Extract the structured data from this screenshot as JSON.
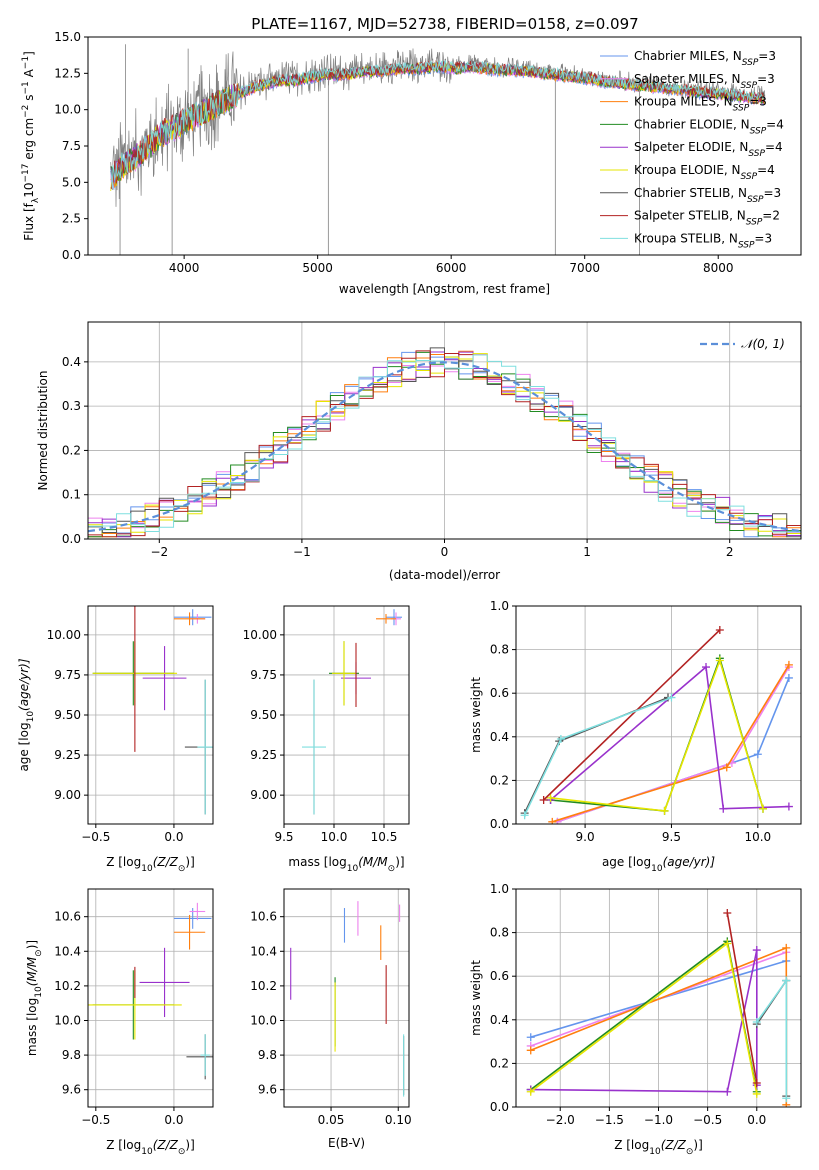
{
  "figure_title": "PLATE=1167, MJD=52738, FIBERID=0158, z=0.097",
  "colors": {
    "chabrier_miles": "#6495ed",
    "salpeter_miles": "#ee82ee",
    "kroupa_miles": "#ff7f0e",
    "chabrier_elodie": "#228b22",
    "salpeter_elodie": "#9932cc",
    "kroupa_elodie": "#e6e600",
    "chabrier_stelib": "#555555",
    "salpeter_stelib": "#b22222",
    "kroupa_stelib": "#7fdfdf",
    "data": "#808080",
    "gaussian": "#5b8fd9",
    "grid": "#b0b0b0"
  },
  "legend_spectrum": [
    {
      "label": "Chabrier MILES, N",
      "sub": "SSP",
      "suffix": "=3",
      "color_key": "chabrier_miles"
    },
    {
      "label": "Salpeter MILES, N",
      "sub": "SSP",
      "suffix": "=3",
      "color_key": "salpeter_miles"
    },
    {
      "label": "Kroupa MILES, N",
      "sub": "SSP",
      "suffix": "=3",
      "color_key": "kroupa_miles"
    },
    {
      "label": "Chabrier ELODIE, N",
      "sub": "SSP",
      "suffix": "=4",
      "color_key": "chabrier_elodie"
    },
    {
      "label": "Salpeter ELODIE, N",
      "sub": "SSP",
      "suffix": "=4",
      "color_key": "salpeter_elodie"
    },
    {
      "label": "Kroupa ELODIE, N",
      "sub": "SSP",
      "suffix": "=4",
      "color_key": "kroupa_elodie"
    },
    {
      "label": "Chabrier STELIB, N",
      "sub": "SSP",
      "suffix": "=3",
      "color_key": "chabrier_stelib"
    },
    {
      "label": "Salpeter STELIB, N",
      "sub": "SSP",
      "suffix": "=2",
      "color_key": "salpeter_stelib"
    },
    {
      "label": "Kroupa STELIB, N",
      "sub": "SSP",
      "suffix": "=3",
      "color_key": "kroupa_stelib"
    }
  ],
  "legend_hist": {
    "label": "𝒩(0, 1)"
  },
  "chart_data": [
    {
      "id": "spectrum",
      "type": "line",
      "xlabel": "wavelength [Angstrom, rest frame]",
      "ylabel_parts": [
        "Flux [f",
        "λ",
        "10",
        "−17",
        " erg cm",
        "−2",
        " s",
        "−1",
        " A",
        "−1",
        "]"
      ],
      "xlim": [
        3280,
        8620
      ],
      "ylim": [
        0,
        15
      ],
      "xticks": [
        4000,
        5000,
        6000,
        7000,
        8000
      ],
      "yticks": [
        0.0,
        2.5,
        5.0,
        7.5,
        10.0,
        12.5,
        15.0
      ],
      "ytick_labels": [
        "0.0",
        "2.5",
        "5.0",
        "7.5",
        "10.0",
        "12.5",
        "15.0"
      ],
      "grid": false,
      "legend_position": "right",
      "continuum": {
        "x": [
          3450,
          3550,
          3650,
          3750,
          3850,
          3950,
          4050,
          4150,
          4250,
          4350,
          4450,
          4550,
          4650,
          4750,
          4850,
          4950,
          5050,
          5150,
          5250,
          5350,
          5450,
          5550,
          5650,
          5750,
          5850,
          5950,
          6050,
          6150,
          6250,
          6350,
          6450,
          6550,
          6650,
          6750,
          6850,
          6950,
          7050,
          7150,
          7250,
          7350,
          7450,
          7550,
          7650,
          7750,
          7850,
          7950,
          8050,
          8150,
          8250,
          8350
        ],
        "y": [
          5.4,
          6.4,
          7.0,
          7.8,
          8.6,
          9.0,
          9.6,
          10.0,
          10.6,
          11.0,
          11.4,
          11.8,
          12.0,
          12.2,
          12.2,
          12.4,
          12.6,
          12.6,
          12.6,
          12.8,
          12.8,
          12.9,
          13.0,
          13.0,
          13.1,
          13.1,
          13.0,
          13.1,
          13.0,
          12.9,
          12.9,
          12.8,
          12.7,
          12.6,
          12.5,
          12.4,
          12.3,
          12.1,
          12.0,
          11.9,
          11.8,
          11.7,
          11.6,
          11.5,
          11.4,
          11.3,
          11.2,
          11.1,
          11.0,
          10.9
        ]
      },
      "data_spikes": [
        {
          "x": 3520,
          "y": 0.0
        },
        {
          "x": 3910,
          "y": 0.0
        },
        {
          "x": 5080,
          "y": 0.0
        },
        {
          "x": 6780,
          "y": 0.0
        },
        {
          "x": 7410,
          "y": 0.0
        },
        {
          "x": 3560,
          "y": 14.5
        },
        {
          "x": 4030,
          "y": 14.2
        }
      ]
    },
    {
      "id": "residual_hist",
      "type": "line",
      "xlabel": "(data-model)/error",
      "ylabel": "Normed distribution",
      "xlim": [
        -2.5,
        2.5
      ],
      "ylim": [
        0,
        0.49
      ],
      "xticks": [
        -2,
        -1,
        0,
        1,
        2
      ],
      "xtick_labels": [
        "−2",
        "−1",
        "0",
        "1",
        "2"
      ],
      "yticks": [
        0.0,
        0.1,
        0.2,
        0.3,
        0.4
      ],
      "ytick_labels": [
        "0.0",
        "0.1",
        "0.2",
        "0.3",
        "0.4"
      ],
      "grid": true,
      "legend_position": "top-right",
      "bin_width": 0.1,
      "gaussian": {
        "mean": 0,
        "sigma": 1
      }
    },
    {
      "id": "age_vs_Z",
      "type": "scatter",
      "xlabel_parts": [
        "Z [log",
        "10",
        "(Z/Z",
        "⊙",
        ")]"
      ],
      "ylabel_parts": [
        "age  [log",
        "10",
        "(age/yr)]"
      ],
      "xlim": [
        -0.55,
        0.25
      ],
      "ylim": [
        8.82,
        10.18
      ],
      "xticks": [
        -0.5,
        0.0
      ],
      "xtick_labels": [
        "−0.5",
        "0.0"
      ],
      "yticks": [
        9.0,
        9.25,
        9.5,
        9.75,
        10.0
      ],
      "ytick_labels": [
        "9.00",
        "9.25",
        "9.50",
        "9.75",
        "10.00"
      ],
      "grid": true,
      "points": [
        {
          "x": 0.12,
          "y": 10.11,
          "xerr": 0.12,
          "yerr": 0.05,
          "color_key": "chabrier_miles"
        },
        {
          "x": 0.15,
          "y": 10.1,
          "xerr": 0.05,
          "yerr": 0.03,
          "color_key": "salpeter_miles"
        },
        {
          "x": 0.1,
          "y": 10.1,
          "xerr": 0.1,
          "yerr": 0.04,
          "color_key": "kroupa_miles"
        },
        {
          "x": -0.26,
          "y": 9.76,
          "xerr": 0.26,
          "yerr": 0.2,
          "color_key": "chabrier_elodie"
        },
        {
          "x": -0.06,
          "y": 9.73,
          "xerr": 0.14,
          "yerr": 0.2,
          "color_key": "salpeter_elodie"
        },
        {
          "x": -0.25,
          "y": 9.76,
          "xerr": 0.27,
          "yerr": 0.2,
          "color_key": "kroupa_elodie"
        },
        {
          "x": 0.2,
          "y": 9.3,
          "xerr": 0.13,
          "yerr": 0.42,
          "color_key": "chabrier_stelib"
        },
        {
          "x": -0.25,
          "y": 9.75,
          "xerr": 0.0,
          "yerr": 0.48,
          "color_key": "salpeter_stelib"
        },
        {
          "x": 0.2,
          "y": 9.3,
          "xerr": 0.05,
          "yerr": 0.42,
          "color_key": "kroupa_stelib"
        }
      ]
    },
    {
      "id": "age_vs_mass",
      "type": "scatter",
      "xlabel_parts": [
        "mass [log",
        "10",
        "(M/M",
        "⊙",
        ")]"
      ],
      "xlim": [
        9.5,
        10.75
      ],
      "ylim": [
        8.82,
        10.18
      ],
      "xticks": [
        9.5,
        10.0,
        10.5
      ],
      "xtick_labels": [
        "9.5",
        "10.0",
        "10.5"
      ],
      "yticks": [
        9.0,
        9.25,
        9.5,
        9.75,
        10.0
      ],
      "ytick_labels": [
        "9.00",
        "9.25",
        "9.50",
        "9.75",
        "10.00"
      ],
      "grid": true,
      "points": [
        {
          "x": 10.6,
          "y": 10.11,
          "xerr": 0.08,
          "yerr": 0.05,
          "color_key": "chabrier_miles"
        },
        {
          "x": 10.62,
          "y": 10.1,
          "xerr": 0.05,
          "yerr": 0.04,
          "color_key": "salpeter_miles"
        },
        {
          "x": 10.52,
          "y": 10.1,
          "xerr": 0.1,
          "yerr": 0.03,
          "color_key": "kroupa_miles"
        },
        {
          "x": 10.1,
          "y": 9.76,
          "xerr": 0.15,
          "yerr": 0.2,
          "color_key": "chabrier_elodie"
        },
        {
          "x": 10.22,
          "y": 9.73,
          "xerr": 0.15,
          "yerr": 0.1,
          "color_key": "salpeter_elodie"
        },
        {
          "x": 10.1,
          "y": 9.76,
          "xerr": 0.12,
          "yerr": 0.2,
          "color_key": "kroupa_elodie"
        },
        {
          "x": 9.8,
          "y": 9.3,
          "xerr": 0.0,
          "yerr": 0.42,
          "color_key": "chabrier_stelib"
        },
        {
          "x": 10.22,
          "y": 9.75,
          "xerr": 0.0,
          "yerr": 0.2,
          "color_key": "salpeter_stelib"
        },
        {
          "x": 9.8,
          "y": 9.3,
          "xerr": 0.12,
          "yerr": 0.42,
          "color_key": "kroupa_stelib"
        }
      ]
    },
    {
      "id": "mass_weight_vs_age",
      "type": "line",
      "xlabel_parts": [
        "age  [log",
        "10",
        "(age/yr)]"
      ],
      "ylabel": "mass weight",
      "xlim": [
        8.6,
        10.25
      ],
      "ylim": [
        0,
        1.0
      ],
      "xticks": [
        9.0,
        9.5,
        10.0
      ],
      "xtick_labels": [
        "9.0",
        "9.5",
        "10.0"
      ],
      "yticks": [
        0.0,
        0.2,
        0.4,
        0.6,
        0.8,
        1.0
      ],
      "ytick_labels": [
        "0.0",
        "0.2",
        "0.4",
        "0.6",
        "0.8",
        "1.0"
      ],
      "grid": true,
      "series": [
        {
          "color_key": "chabrier_miles",
          "x": [
            8.84,
            10.0,
            10.18
          ],
          "y": [
            0.01,
            0.32,
            0.67
          ]
        },
        {
          "color_key": "salpeter_miles",
          "x": [
            8.84,
            9.85,
            10.18
          ],
          "y": [
            0.01,
            0.28,
            0.72
          ]
        },
        {
          "color_key": "kroupa_miles",
          "x": [
            8.81,
            9.82,
            10.18
          ],
          "y": [
            0.01,
            0.26,
            0.73
          ]
        },
        {
          "color_key": "chabrier_elodie",
          "x": [
            8.8,
            9.46,
            9.78,
            10.03
          ],
          "y": [
            0.11,
            0.06,
            0.76,
            0.07
          ]
        },
        {
          "color_key": "salpeter_elodie",
          "x": [
            8.8,
            9.7,
            9.8,
            10.18
          ],
          "y": [
            0.11,
            0.72,
            0.07,
            0.08
          ]
        },
        {
          "color_key": "kroupa_elodie",
          "x": [
            8.8,
            9.46,
            9.78,
            10.03
          ],
          "y": [
            0.12,
            0.06,
            0.75,
            0.07
          ]
        },
        {
          "color_key": "chabrier_stelib",
          "x": [
            8.65,
            8.85,
            9.48
          ],
          "y": [
            0.05,
            0.38,
            0.58
          ]
        },
        {
          "color_key": "salpeter_stelib",
          "x": [
            8.76,
            9.78
          ],
          "y": [
            0.11,
            0.89
          ]
        },
        {
          "color_key": "kroupa_stelib",
          "x": [
            8.65,
            8.86,
            9.5
          ],
          "y": [
            0.04,
            0.39,
            0.58
          ]
        }
      ]
    },
    {
      "id": "mass_vs_Z",
      "type": "scatter",
      "xlabel_parts": [
        "Z [log",
        "10",
        "(Z/Z",
        "⊙",
        ")]"
      ],
      "ylabel_parts": [
        "mass [log",
        "10",
        "(M/M",
        "⊙",
        ")]"
      ],
      "xlim": [
        -0.55,
        0.25
      ],
      "ylim": [
        9.5,
        10.76
      ],
      "xticks": [
        -0.5,
        0.0
      ],
      "xtick_labels": [
        "−0.5",
        "0.0"
      ],
      "yticks": [
        9.6,
        9.8,
        10.0,
        10.2,
        10.4,
        10.6
      ],
      "ytick_labels": [
        "9.6",
        "9.8",
        "10.0",
        "10.2",
        "10.4",
        "10.6"
      ],
      "grid": true,
      "points": [
        {
          "x": 0.12,
          "y": 10.59,
          "xerr": 0.12,
          "yerr": 0.06,
          "color_key": "chabrier_miles"
        },
        {
          "x": 0.15,
          "y": 10.63,
          "xerr": 0.05,
          "yerr": 0.05,
          "color_key": "salpeter_miles"
        },
        {
          "x": 0.1,
          "y": 10.51,
          "xerr": 0.1,
          "yerr": 0.1,
          "color_key": "kroupa_miles"
        },
        {
          "x": -0.26,
          "y": 10.09,
          "xerr": 0.26,
          "yerr": 0.2,
          "color_key": "chabrier_elodie"
        },
        {
          "x": -0.06,
          "y": 10.22,
          "xerr": 0.16,
          "yerr": 0.2,
          "color_key": "salpeter_elodie"
        },
        {
          "x": -0.25,
          "y": 10.09,
          "xerr": 0.3,
          "yerr": 0.2,
          "color_key": "kroupa_elodie"
        },
        {
          "x": 0.2,
          "y": 9.79,
          "xerr": 0.12,
          "yerr": 0.13,
          "color_key": "chabrier_stelib"
        },
        {
          "x": -0.25,
          "y": 10.22,
          "xerr": 0.0,
          "yerr": 0.09,
          "color_key": "salpeter_stelib"
        },
        {
          "x": 0.2,
          "y": 9.8,
          "xerr": 0.03,
          "yerr": 0.12,
          "color_key": "kroupa_stelib"
        }
      ]
    },
    {
      "id": "mass_vs_ebv",
      "type": "scatter",
      "xlabel": "E(B-V)",
      "xlim": [
        0.015,
        0.108
      ],
      "ylim": [
        9.5,
        10.76
      ],
      "xticks": [
        0.05,
        0.1
      ],
      "xtick_labels": [
        "0.05",
        "0.10"
      ],
      "yticks": [
        9.6,
        9.8,
        10.0,
        10.2,
        10.4,
        10.6
      ],
      "ytick_labels": [
        "9.6",
        "9.8",
        "10.0",
        "10.2",
        "10.4",
        "10.6"
      ],
      "grid": true,
      "points": [
        {
          "x": 0.06,
          "y": 10.55,
          "xerr": 0.0,
          "yerr": 0.1,
          "color_key": "chabrier_miles"
        },
        {
          "x": 0.101,
          "y": 10.62,
          "xerr": 0.0,
          "yerr": 0.05,
          "color_key": "salpeter_miles"
        },
        {
          "x": 0.087,
          "y": 10.45,
          "xerr": 0.0,
          "yerr": 0.1,
          "color_key": "kroupa_miles"
        },
        {
          "x": 0.053,
          "y": 10.05,
          "xerr": 0.0,
          "yerr": 0.2,
          "color_key": "chabrier_elodie"
        },
        {
          "x": 0.02,
          "y": 10.27,
          "xerr": 0.0,
          "yerr": 0.15,
          "color_key": "salpeter_elodie"
        },
        {
          "x": 0.053,
          "y": 10.02,
          "xerr": 0.0,
          "yerr": 0.2,
          "color_key": "kroupa_elodie"
        },
        {
          "x": 0.104,
          "y": 9.74,
          "xerr": 0.0,
          "yerr": 0.17,
          "color_key": "chabrier_stelib"
        },
        {
          "x": 0.091,
          "y": 10.15,
          "xerr": 0.0,
          "yerr": 0.17,
          "color_key": "salpeter_stelib"
        },
        {
          "x": 0.104,
          "y": 9.74,
          "xerr": 0.0,
          "yerr": 0.18,
          "color_key": "kroupa_stelib"
        },
        {
          "x": 0.07,
          "y": 10.59,
          "xerr": 0.0,
          "yerr": 0.1,
          "color_key": "salpeter_miles"
        }
      ]
    },
    {
      "id": "mass_weight_vs_Z",
      "type": "line",
      "xlabel_parts": [
        "Z [log",
        "10",
        "(Z/Z",
        "⊙",
        ")]"
      ],
      "ylabel": "mass weight",
      "xlim": [
        -2.45,
        0.45
      ],
      "ylim": [
        0,
        1.0
      ],
      "xticks": [
        -2.0,
        -1.5,
        -1.0,
        -0.5,
        0.0
      ],
      "xtick_labels": [
        "−2.0",
        "−1.5",
        "−1.0",
        "−0.5",
        "0.0"
      ],
      "yticks": [
        0.0,
        0.2,
        0.4,
        0.6,
        0.8,
        1.0
      ],
      "ytick_labels": [
        "0.0",
        "0.2",
        "0.4",
        "0.6",
        "0.8",
        "1.0"
      ],
      "grid": true,
      "series": [
        {
          "color_key": "chabrier_miles",
          "x": [
            -2.3,
            0.3
          ],
          "y": [
            0.32,
            0.67
          ]
        },
        {
          "color_key": "salpeter_miles",
          "x": [
            -2.3,
            0.3
          ],
          "y": [
            0.28,
            0.71
          ]
        },
        {
          "color_key": "kroupa_miles",
          "x": [
            -2.3,
            0.3,
            0.3
          ],
          "y": [
            0.26,
            0.73,
            0.01
          ]
        },
        {
          "color_key": "chabrier_elodie",
          "x": [
            -2.3,
            -0.3,
            0.0
          ],
          "y": [
            0.08,
            0.76,
            0.07
          ]
        },
        {
          "color_key": "salpeter_elodie",
          "x": [
            -2.3,
            -0.3,
            0.0,
            0.0
          ],
          "y": [
            0.08,
            0.07,
            0.72,
            0.1
          ]
        },
        {
          "color_key": "kroupa_elodie",
          "x": [
            -2.3,
            -0.3,
            0.0
          ],
          "y": [
            0.07,
            0.75,
            0.06
          ]
        },
        {
          "color_key": "chabrier_stelib",
          "x": [
            0.0,
            0.3,
            0.3
          ],
          "y": [
            0.38,
            0.58,
            0.05
          ]
        },
        {
          "color_key": "salpeter_stelib",
          "x": [
            -0.3,
            0.0
          ],
          "y": [
            0.89,
            0.11
          ]
        },
        {
          "color_key": "kroupa_stelib",
          "x": [
            0.0,
            0.3,
            0.3
          ],
          "y": [
            0.39,
            0.58,
            0.04
          ]
        }
      ]
    }
  ]
}
